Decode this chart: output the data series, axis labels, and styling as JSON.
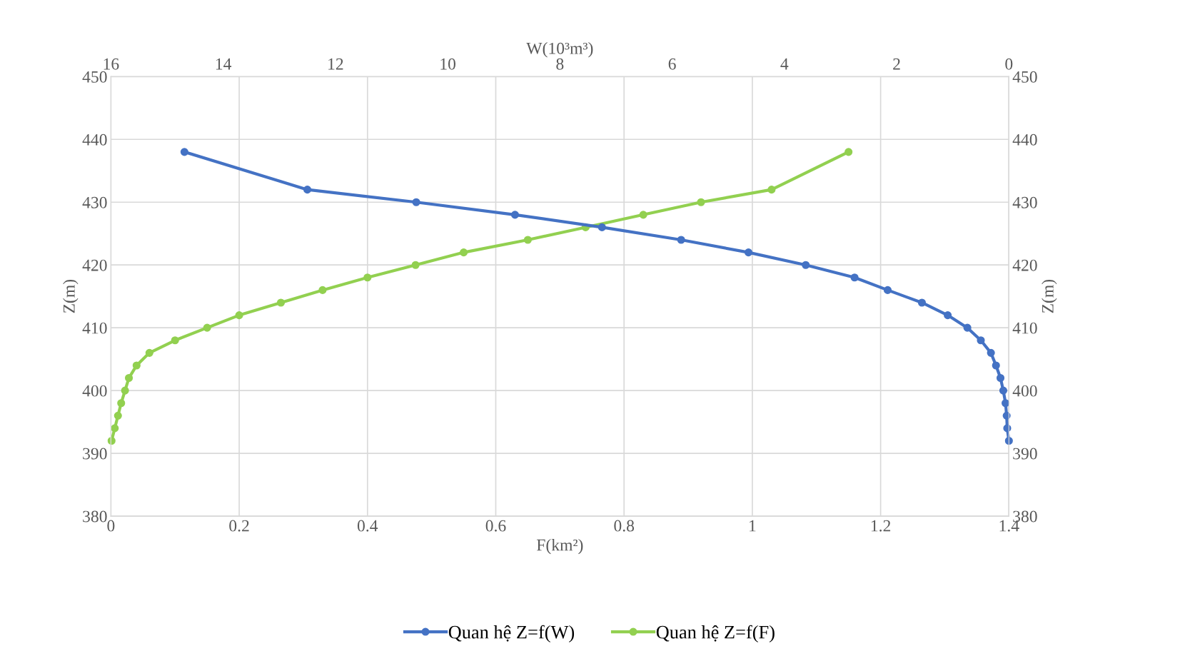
{
  "chart_data": {
    "type": "line",
    "xlabel": "F(km²)",
    "x2label": "W(10³m³)",
    "ylabel": "Z(m)",
    "y2label": "Z(m)",
    "xlim": [
      0,
      1.4
    ],
    "xticks": [
      0,
      0.2,
      0.4,
      0.6,
      0.8,
      1,
      1.2,
      1.4
    ],
    "x2lim": [
      16,
      0
    ],
    "x2ticks": [
      16,
      14,
      12,
      10,
      8,
      6,
      4,
      2,
      0
    ],
    "ylim": [
      380,
      450
    ],
    "yticks": [
      380,
      390,
      400,
      410,
      420,
      430,
      440,
      450
    ],
    "y2lim": [
      380,
      450
    ],
    "y2ticks": [
      380,
      390,
      400,
      410,
      420,
      430,
      440,
      450
    ],
    "grid": true,
    "legend": "bottom",
    "marker": "circle",
    "line_style": "solid",
    "series": [
      {
        "name": "Quan hệ Z=f(W)",
        "color": "#4472c4",
        "axis": "x2",
        "x": [
          14.69,
          12.5,
          10.56,
          8.8,
          7.25,
          5.84,
          4.64,
          3.62,
          2.75,
          2.16,
          1.55,
          1.09,
          0.74,
          0.5,
          0.32,
          0.23,
          0.15,
          0.1,
          0.06,
          0.04,
          0.03,
          0.0
        ],
        "values": [
          438,
          432,
          430,
          428,
          426,
          424,
          422,
          420,
          418,
          416,
          414,
          412,
          410,
          408,
          406,
          404,
          402,
          400,
          398,
          396,
          394,
          392
        ]
      },
      {
        "name": "Quan hệ Z=f(F)",
        "color": "#92d050",
        "x": [
          1.15,
          1.03,
          0.92,
          0.83,
          0.74,
          0.65,
          0.55,
          0.475,
          0.4,
          0.33,
          0.265,
          0.2,
          0.15,
          0.1,
          0.06,
          0.04,
          0.028,
          0.022,
          0.016,
          0.011,
          0.006,
          0.001
        ],
        "values": [
          438,
          432,
          430,
          428,
          426,
          424,
          422,
          420,
          418,
          416,
          414,
          412,
          410,
          408,
          406,
          404,
          402,
          400,
          398,
          396,
          394,
          392
        ]
      }
    ]
  }
}
